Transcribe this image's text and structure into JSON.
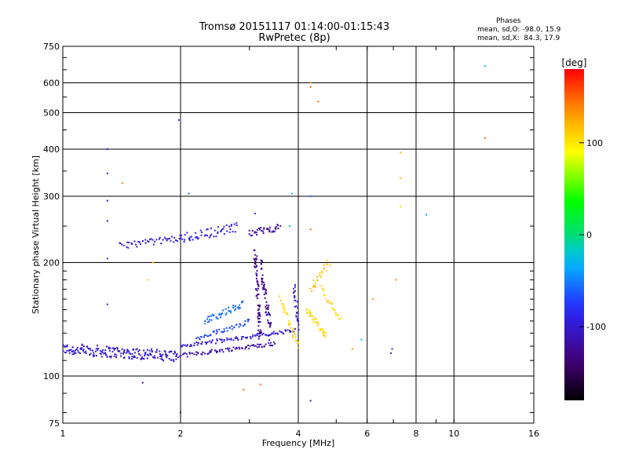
{
  "chart_data": {
    "type": "scatter",
    "title": "Tromsø 20151117 01:14:00-01:15:43",
    "subtitle": "RwPretec (8p)",
    "xlabel": "Frequency [MHz]",
    "ylabel": "Stationary phase Virtual Height [km]",
    "x_scale": "log",
    "y_scale": "log",
    "xlim": [
      1,
      16
    ],
    "ylim": [
      75,
      750
    ],
    "x_ticks": [
      1,
      2,
      4,
      6,
      8,
      10,
      16
    ],
    "x_tick_labels": [
      "1",
      "2",
      "4",
      "6",
      "8",
      "10",
      "16"
    ],
    "y_ticks": [
      75,
      100,
      200,
      300,
      400,
      500,
      600,
      750
    ],
    "y_tick_labels": [
      "75",
      "100",
      "200",
      "300",
      "400",
      "500",
      "600",
      "750"
    ],
    "grid": true,
    "legend": {
      "title": "Phases",
      "line1": "mean, sd,O: -98.0, 15.9",
      "line2": "mean, sd,X:  84.3, 17.9"
    },
    "colorbar": {
      "label": "[deg]",
      "range": [
        -180,
        180
      ],
      "ticks": [
        100,
        0,
        -100
      ],
      "tick_labels": [
        "100",
        "0",
        "-100"
      ]
    },
    "series": [
      {
        "segments": [
          {
            "from": [
              1.0,
              118
            ],
            "to": [
              1.95,
              113
            ],
            "phase": -100,
            "count": 190,
            "spread": 0.035
          },
          {
            "from": [
              1.95,
              113
            ],
            "to": [
              3.5,
              122
            ],
            "phase": -110,
            "count": 80,
            "spread": 0.012
          },
          {
            "from": [
              2.0,
              120
            ],
            "to": [
              3.9,
              132
            ],
            "phase": -95,
            "count": 90,
            "spread": 0.012
          },
          {
            "from": [
              2.2,
              125
            ],
            "to": [
              3.0,
              140
            ],
            "phase": -70,
            "count": 45,
            "spread": 0.015
          },
          {
            "from": [
              2.3,
              140
            ],
            "to": [
              2.9,
              155
            ],
            "phase": -55,
            "count": 45,
            "spread": 0.02
          },
          {
            "from": [
              1.4,
              222
            ],
            "to": [
              2.0,
              232
            ],
            "phase": -100,
            "count": 45,
            "spread": 0.02
          },
          {
            "from": [
              2.0,
              232
            ],
            "to": [
              2.8,
              248
            ],
            "phase": -90,
            "count": 55,
            "spread": 0.03
          },
          {
            "from": [
              3.0,
              240
            ],
            "to": [
              3.6,
              248
            ],
            "phase": -120,
            "count": 35,
            "spread": 0.02
          },
          {
            "from": [
              3.1,
              215
            ],
            "to": [
              3.2,
              125
            ],
            "phase": -130,
            "count": 70,
            "spread": 0.06
          },
          {
            "from": [
              3.2,
              200
            ],
            "to": [
              3.4,
              130
            ],
            "phase": -125,
            "count": 60,
            "spread": 0.06
          },
          {
            "from": [
              3.9,
              175
            ],
            "to": [
              4.0,
              135
            ],
            "phase": -100,
            "count": 25,
            "spread": 0.03
          },
          {
            "from": [
              3.6,
              160
            ],
            "to": [
              4.0,
              120
            ],
            "phase": 110,
            "count": 30,
            "spread": 0.02
          },
          {
            "from": [
              4.2,
              150
            ],
            "to": [
              4.7,
              128
            ],
            "phase": 105,
            "count": 35,
            "spread": 0.02
          },
          {
            "from": [
              4.3,
              170
            ],
            "to": [
              4.8,
              200
            ],
            "phase": 115,
            "count": 22,
            "spread": 0.025
          },
          {
            "from": [
              4.6,
              170
            ],
            "to": [
              5.1,
              140
            ],
            "phase": 110,
            "count": 20,
            "spread": 0.02
          }
        ],
        "points": [
          {
            "x": 1.3,
            "y": 400,
            "phase": -110
          },
          {
            "x": 1.3,
            "y": 345,
            "phase": -100
          },
          {
            "x": 1.3,
            "y": 292,
            "phase": -110
          },
          {
            "x": 1.3,
            "y": 258,
            "phase": -100
          },
          {
            "x": 1.3,
            "y": 205,
            "phase": -80
          },
          {
            "x": 1.3,
            "y": 155,
            "phase": -100
          },
          {
            "x": 1.42,
            "y": 325,
            "phase": 140
          },
          {
            "x": 1.98,
            "y": 478,
            "phase": -80
          },
          {
            "x": 2.1,
            "y": 305,
            "phase": -60
          },
          {
            "x": 1.65,
            "y": 180,
            "phase": 110
          },
          {
            "x": 1.7,
            "y": 200,
            "phase": 110
          },
          {
            "x": 2.0,
            "y": 80,
            "phase": -150
          },
          {
            "x": 1.6,
            "y": 96,
            "phase": -130
          },
          {
            "x": 4.3,
            "y": 600,
            "phase": 130
          },
          {
            "x": 4.3,
            "y": 585,
            "phase": 150
          },
          {
            "x": 4.5,
            "y": 535,
            "phase": 150
          },
          {
            "x": 4.3,
            "y": 300,
            "phase": -60
          },
          {
            "x": 3.85,
            "y": 305,
            "phase": -20
          },
          {
            "x": 3.8,
            "y": 250,
            "phase": 0
          },
          {
            "x": 4.3,
            "y": 245,
            "phase": 150
          },
          {
            "x": 7.3,
            "y": 392,
            "phase": 120
          },
          {
            "x": 7.3,
            "y": 335,
            "phase": 120
          },
          {
            "x": 7.3,
            "y": 282,
            "phase": 100
          },
          {
            "x": 8.5,
            "y": 268,
            "phase": -40
          },
          {
            "x": 12.0,
            "y": 665,
            "phase": -20
          },
          {
            "x": 12.0,
            "y": 428,
            "phase": 150
          },
          {
            "x": 7.1,
            "y": 180,
            "phase": 140
          },
          {
            "x": 6.2,
            "y": 160,
            "phase": 130
          },
          {
            "x": 5.8,
            "y": 125,
            "phase": -20
          },
          {
            "x": 6.9,
            "y": 115,
            "phase": -100
          },
          {
            "x": 6.95,
            "y": 118,
            "phase": -110
          },
          {
            "x": 5.5,
            "y": 118,
            "phase": 130
          },
          {
            "x": 4.3,
            "y": 86,
            "phase": -100
          },
          {
            "x": 2.9,
            "y": 92,
            "phase": 150
          },
          {
            "x": 3.2,
            "y": 95,
            "phase": 150
          },
          {
            "x": 3.1,
            "y": 270,
            "phase": -90
          }
        ]
      }
    ]
  }
}
